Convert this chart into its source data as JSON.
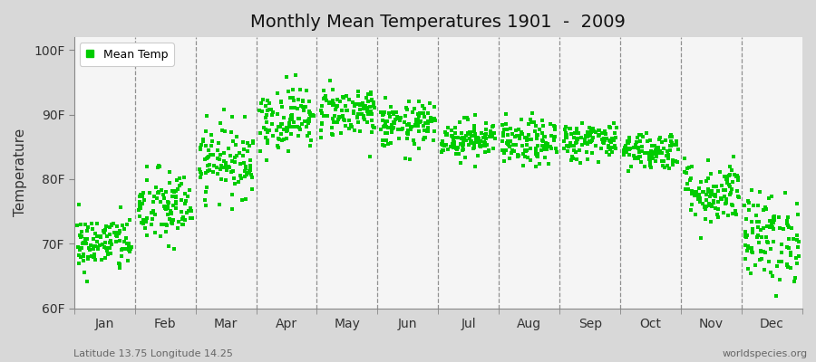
{
  "title": "Monthly Mean Temperatures 1901  -  2009",
  "ylabel": "Temperature",
  "xlabel_labels": [
    "Jan",
    "Feb",
    "Mar",
    "Apr",
    "May",
    "Jun",
    "Jul",
    "Aug",
    "Sep",
    "Oct",
    "Nov",
    "Dec"
  ],
  "ytick_labels": [
    "60F",
    "70F",
    "80F",
    "90F",
    "100F"
  ],
  "ytick_values": [
    60,
    70,
    80,
    90,
    100
  ],
  "ylim": [
    60,
    102
  ],
  "xlim": [
    0,
    12
  ],
  "dot_color": "#00cc00",
  "dot_size": 6,
  "legend_label": "Mean Temp",
  "subtitle_left": "Latitude 13.75 Longitude 14.25",
  "subtitle_right": "worldspecies.org",
  "background_color": "#d8d8d8",
  "plot_bg_color": "#f5f5f5",
  "n_years": 109,
  "monthly_means": [
    70.0,
    75.5,
    83.0,
    89.5,
    90.5,
    88.3,
    86.3,
    85.5,
    86.0,
    84.5,
    78.0,
    71.0
  ],
  "monthly_stds": [
    2.2,
    3.0,
    2.8,
    2.5,
    2.0,
    1.8,
    1.5,
    1.8,
    1.5,
    1.5,
    2.5,
    3.5
  ]
}
